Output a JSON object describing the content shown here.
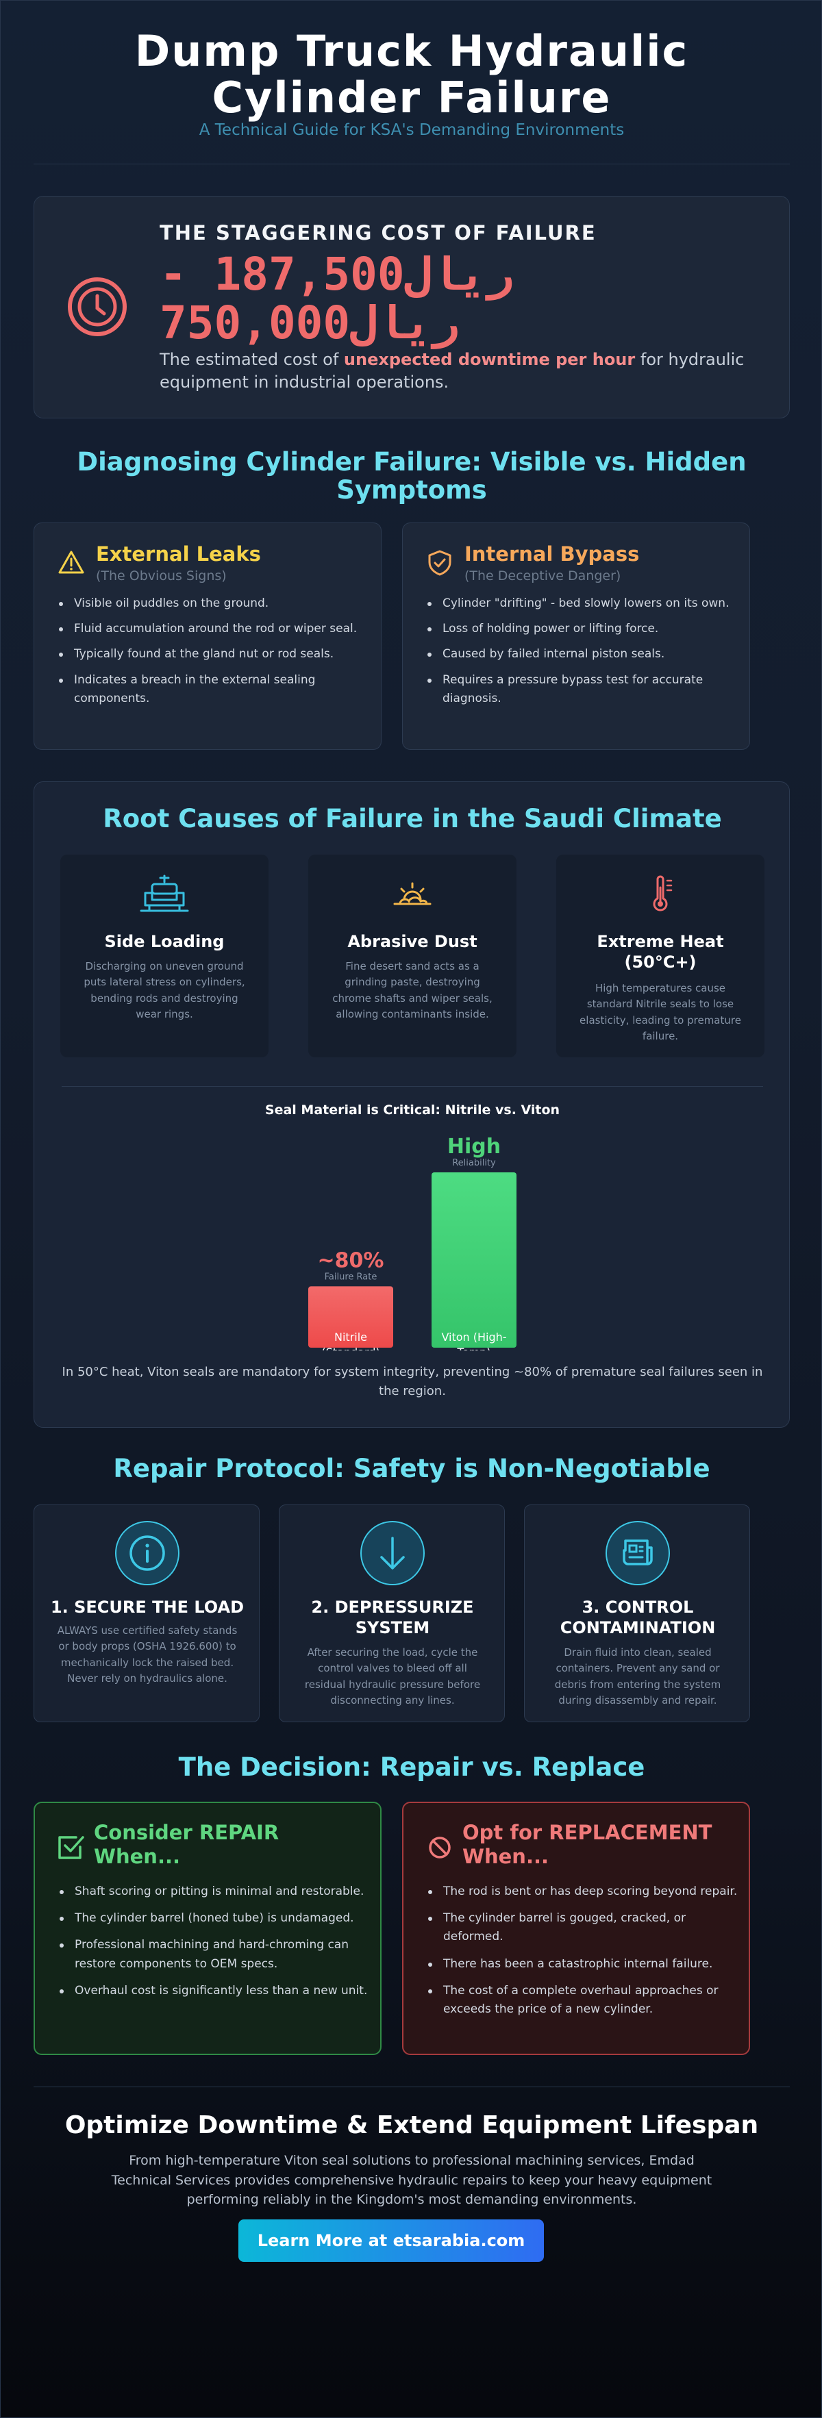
{
  "header": {
    "title": "Dump Truck Hydraulic Cylinder Failure",
    "subtitle": "A Technical Guide for KSA's Demanding Environments"
  },
  "cost": {
    "icon": "clock-icon",
    "label": "THE STAGGERING COST OF FAILURE",
    "range_low": "- 187,500ريال",
    "range_high": "750,000ريال",
    "desc_prefix": "The estimated cost of ",
    "desc_highlight": "unexpected downtime per hour",
    "desc_suffix": " for hydraulic equipment in industrial operations.",
    "accent_color": "#ef6b6b"
  },
  "diagnosis": {
    "title": "Diagnosing Cylinder Failure: Visible vs. Hidden Symptoms",
    "external": {
      "icon": "warning-triangle-icon",
      "title": "External Leaks",
      "subtitle": "(The Obvious Signs)",
      "color": "#f5d24a",
      "items": [
        "Visible oil puddles on the ground.",
        "Fluid accumulation around the rod or wiper seal.",
        "Typically found at the gland nut or rod seals.",
        "Indicates a breach in the external sealing components."
      ]
    },
    "internal": {
      "icon": "shield-check-icon",
      "title": "Internal Bypass",
      "subtitle": "(The Deceptive Danger)",
      "color": "#f6a85b",
      "items": [
        "Cylinder \"drifting\" - bed slowly lowers on its own.",
        "Loss of holding power or lifting force.",
        "Caused by failed internal piston seals.",
        "Requires a pressure bypass test for accurate diagnosis."
      ]
    }
  },
  "root_causes": {
    "title": "Root Causes of Failure in the Saudi Climate",
    "causes": [
      {
        "icon": "sofa-icon",
        "title": "Side Loading",
        "desc": "Discharging on uneven ground puts lateral stress on cylinders, bending rods and destroying wear rings."
      },
      {
        "icon": "sunset-cloud-icon",
        "title": "Abrasive Dust",
        "desc": "Fine desert sand acts as a grinding paste, destroying chrome shafts and wiper seals, allowing contaminants inside."
      },
      {
        "icon": "thermometer-icon",
        "title": "Extreme Heat (50°C+)",
        "desc": "High temperatures cause standard Nitrile seals to lose elasticity, leading to premature failure."
      }
    ],
    "chart_title": "Seal Material is Critical: Nitrile vs. Viton",
    "note": "In 50°C heat, Viton seals are mandatory for system integrity, preventing ~80% of premature seal failures seen in the region."
  },
  "chart_data": {
    "type": "bar",
    "title": "Seal Material is Critical: Nitrile vs. Viton",
    "categories": [
      "Nitrile (Standard)",
      "Viton (High-Temp)"
    ],
    "values": [
      0.35,
      1.0
    ],
    "value_labels": [
      "~80%",
      "High"
    ],
    "value_captions": [
      "Failure Rate",
      "Reliability"
    ],
    "colors": [
      "#ee4a4a",
      "#35c46a"
    ],
    "label_colors": [
      "#ef6b6b",
      "#4fd47a"
    ]
  },
  "protocol": {
    "title": "Repair Protocol: Safety is Non-Negotiable",
    "steps": [
      {
        "icon": "info-icon",
        "title": "1. SECURE THE LOAD",
        "desc": "ALWAYS use certified safety stands or body props (OSHA 1926.600) to mechanically lock the raised bed. Never rely on hydraulics alone."
      },
      {
        "icon": "arrow-down-icon",
        "title": "2. DEPRESSURIZE SYSTEM",
        "desc": "After securing the load, cycle the control valves to bleed off all residual hydraulic pressure before disconnecting any lines."
      },
      {
        "icon": "newspaper-icon",
        "title": "3. CONTROL CONTAMINATION",
        "desc": "Drain fluid into clean, sealed containers. Prevent any sand or debris from entering the system during disassembly and repair."
      }
    ]
  },
  "decision": {
    "title": "The Decision: Repair vs. Replace",
    "repair": {
      "icon": "checkbox-icon",
      "title": "Consider REPAIR When...",
      "color": "#5fd680",
      "items": [
        "Shaft scoring or pitting is minimal and restorable.",
        "The cylinder barrel (honed tube) is undamaged.",
        "Professional machining and hard-chroming can restore components to OEM specs.",
        "Overhaul cost is significantly less than a new unit."
      ]
    },
    "replace": {
      "icon": "prohibited-icon",
      "title": "Opt for REPLACEMENT When...",
      "color": "#f07a7a",
      "items": [
        "The rod is bent or has deep scoring beyond repair.",
        "The cylinder barrel is gouged, cracked, or deformed.",
        "There has been a catastrophic internal failure.",
        "The cost of a complete overhaul approaches or exceeds the price of a new cylinder."
      ]
    }
  },
  "cta": {
    "title": "Optimize Downtime & Extend Equipment Lifespan",
    "text": "From high-temperature Viton seal solutions to professional machining services, Emdad Technical Services provides comprehensive hydraulic repairs to keep your heavy equipment performing reliably in the Kingdom's most demanding environments.",
    "button": "Learn More at etsarabia.com"
  }
}
